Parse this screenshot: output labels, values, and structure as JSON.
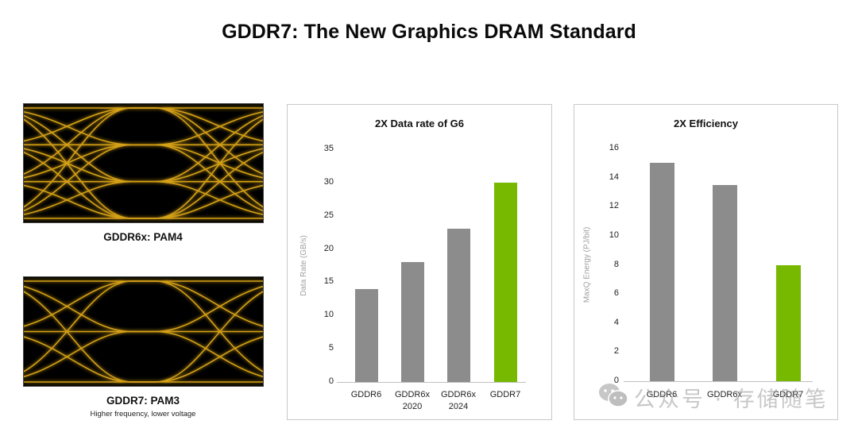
{
  "page": {
    "title": "GDDR7: The New Graphics DRAM Standard"
  },
  "eye_diagrams": [
    {
      "caption": "GDDR6x: PAM4",
      "subcaption": "",
      "levels": 4,
      "trace_color": "#d4a017"
    },
    {
      "caption": "GDDR7: PAM3",
      "subcaption": "Higher frequency, lower voltage",
      "levels": 3,
      "trace_color": "#d4a017"
    }
  ],
  "watermark": {
    "icon": "wechat-icon",
    "text": "公众号 · 存储随笔"
  },
  "colors": {
    "gray_bar": "#8c8c8c",
    "highlight_bar": "#76b900",
    "eye_trace": "#d4a017"
  },
  "chart_data": [
    {
      "type": "bar",
      "title": "2X Data rate of G6",
      "xlabel": "",
      "ylabel": "Data Rate (GB/s)",
      "categories": [
        "GDDR6",
        "GDDR6x 2020",
        "GDDR6x 2024",
        "GDDR7"
      ],
      "category_lines": [
        [
          "GDDR6"
        ],
        [
          "GDDR6x",
          "2020"
        ],
        [
          "GDDR6x",
          "2024"
        ],
        [
          "GDDR7"
        ]
      ],
      "values": [
        14,
        18,
        23,
        30
      ],
      "bar_colors": [
        "#8c8c8c",
        "#8c8c8c",
        "#8c8c8c",
        "#76b900"
      ],
      "ylim": [
        0,
        35
      ],
      "yticks": [
        0,
        5,
        10,
        15,
        20,
        25,
        30,
        35
      ],
      "grid": false,
      "legend": null
    },
    {
      "type": "bar",
      "title": "2X Efficiency",
      "xlabel": "",
      "ylabel": "MaxQ Energy (PJ/bit)",
      "categories": [
        "GDDR6",
        "GDDR6x",
        "GDDR7"
      ],
      "category_lines": [
        [
          "GDDR6"
        ],
        [
          "GDDR6x"
        ],
        [
          "GDDR7"
        ]
      ],
      "values": [
        15,
        13.5,
        8
      ],
      "bar_colors": [
        "#8c8c8c",
        "#8c8c8c",
        "#76b900"
      ],
      "ylim": [
        0,
        16
      ],
      "yticks": [
        0,
        2,
        4,
        6,
        8,
        10,
        12,
        14,
        16
      ],
      "grid": false,
      "legend": null
    }
  ]
}
